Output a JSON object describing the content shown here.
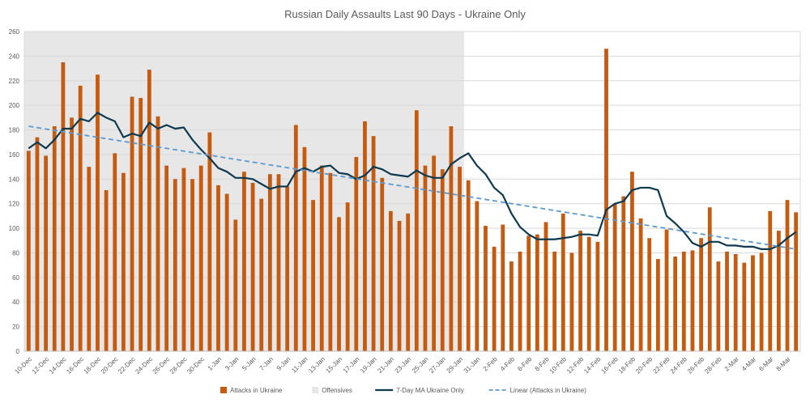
{
  "chart_data": {
    "type": "bar",
    "title": "Russian Daily Assaults Last 90 Days - Ukraine Only",
    "xlabel": "",
    "ylabel": "",
    "ylim": [
      0,
      260
    ],
    "yticks": [
      0,
      20,
      40,
      60,
      80,
      100,
      120,
      140,
      160,
      180,
      200,
      220,
      240,
      260
    ],
    "grid": true,
    "legend_position": "bottom",
    "categories": [
      "10-Dec",
      "11-Dec",
      "12-Dec",
      "13-Dec",
      "14-Dec",
      "15-Dec",
      "16-Dec",
      "17-Dec",
      "18-Dec",
      "19-Dec",
      "20-Dec",
      "21-Dec",
      "22-Dec",
      "23-Dec",
      "24-Dec",
      "25-Dec",
      "26-Dec",
      "27-Dec",
      "28-Dec",
      "29-Dec",
      "30-Dec",
      "31-Dec",
      "1-Jan",
      "2-Jan",
      "3-Jan",
      "4-Jan",
      "5-Jan",
      "6-Jan",
      "7-Jan",
      "8-Jan",
      "9-Jan",
      "10-Jan",
      "11-Jan",
      "12-Jan",
      "13-Jan",
      "14-Jan",
      "15-Jan",
      "16-Jan",
      "17-Jan",
      "18-Jan",
      "19-Jan",
      "20-Jan",
      "21-Jan",
      "22-Jan",
      "23-Jan",
      "24-Jan",
      "25-Jan",
      "26-Jan",
      "27-Jan",
      "28-Jan",
      "29-Jan",
      "30-Jan",
      "31-Jan",
      "1-Feb",
      "2-Feb",
      "3-Feb",
      "4-Feb",
      "5-Feb",
      "6-Feb",
      "7-Feb",
      "8-Feb",
      "9-Feb",
      "10-Feb",
      "11-Feb",
      "12-Feb",
      "13-Feb",
      "14-Feb",
      "15-Feb",
      "16-Feb",
      "17-Feb",
      "18-Feb",
      "19-Feb",
      "20-Feb",
      "21-Feb",
      "22-Feb",
      "23-Feb",
      "24-Feb",
      "25-Feb",
      "26-Feb",
      "27-Feb",
      "28-Feb",
      "1-Mar",
      "2-Mar",
      "3-Mar",
      "4-Mar",
      "5-Mar",
      "6-Mar",
      "7-Mar",
      "8-Mar",
      "9-Mar"
    ],
    "tick_labels": [
      "10-Dec",
      "12-Dec",
      "14-Dec",
      "16-Dec",
      "18-Dec",
      "20-Dec",
      "22-Dec",
      "24-Dec",
      "26-Dec",
      "28-Dec",
      "30-Dec",
      "1-Jan",
      "3-Jan",
      "5-Jan",
      "7-Jan",
      "9-Jan",
      "11-Jan",
      "13-Jan",
      "15-Jan",
      "17-Jan",
      "19-Jan",
      "21-Jan",
      "23-Jan",
      "25-Jan",
      "27-Jan",
      "29-Jan",
      "31-Jan",
      "2-Feb",
      "4-Feb",
      "6-Feb",
      "8-Feb",
      "10-Feb",
      "12-Feb",
      "14-Feb",
      "16-Feb",
      "18-Feb",
      "20-Feb",
      "22-Feb",
      "24-Feb",
      "26-Feb",
      "28-Feb",
      "2-Mar",
      "4-Mar",
      "6-Mar",
      "8-Mar"
    ],
    "offensives_period": {
      "name": "Offensives",
      "from": "10-Dec",
      "to": "29-Jan"
    },
    "series": [
      {
        "name": "Attacks in Ukraine",
        "type": "bar",
        "color": "#C55A11",
        "values": [
          163,
          174,
          159,
          183,
          235,
          190,
          216,
          150,
          225,
          131,
          161,
          145,
          207,
          206,
          229,
          191,
          151,
          140,
          149,
          140,
          151,
          178,
          135,
          128,
          107,
          146,
          137,
          124,
          144,
          144,
          134,
          184,
          166,
          123,
          151,
          145,
          109,
          121,
          158,
          187,
          175,
          141,
          114,
          106,
          112,
          196,
          151,
          159,
          148,
          183,
          150,
          139,
          122,
          102,
          85,
          103,
          73,
          81,
          94,
          95,
          105,
          81,
          112,
          80,
          98,
          93,
          89,
          246,
          120,
          126,
          146,
          108,
          92,
          75,
          99,
          77,
          81,
          82,
          92,
          117,
          73,
          81,
          79,
          72,
          78,
          80,
          114,
          98,
          123,
          113
        ]
      },
      {
        "name": "7-Day MA Ukraine Only",
        "type": "line",
        "color": "#0E3A4F",
        "values": [
          165,
          170,
          165,
          172,
          181,
          181,
          189,
          187,
          194,
          190,
          187,
          174,
          177,
          175,
          186,
          181,
          184,
          181,
          182,
          172,
          164,
          157,
          149,
          146,
          141,
          141,
          140,
          136,
          132,
          134,
          134,
          146,
          149,
          146,
          150,
          151,
          145,
          144,
          140,
          143,
          150,
          148,
          144,
          143,
          142,
          147,
          143,
          141,
          141,
          152,
          157,
          161,
          151,
          144,
          133,
          127,
          112,
          101,
          95,
          91,
          91,
          91,
          92,
          93,
          95,
          95,
          94,
          115,
          120,
          122,
          131,
          133,
          133,
          131,
          110,
          104,
          97,
          88,
          85,
          89,
          89,
          86,
          86,
          85,
          85,
          83,
          83,
          86,
          92,
          97
        ]
      },
      {
        "name": "Linear (Attacks in Ukraine)",
        "type": "trendline",
        "color": "#5B9BD5",
        "start": 183,
        "end": 83
      }
    ]
  }
}
